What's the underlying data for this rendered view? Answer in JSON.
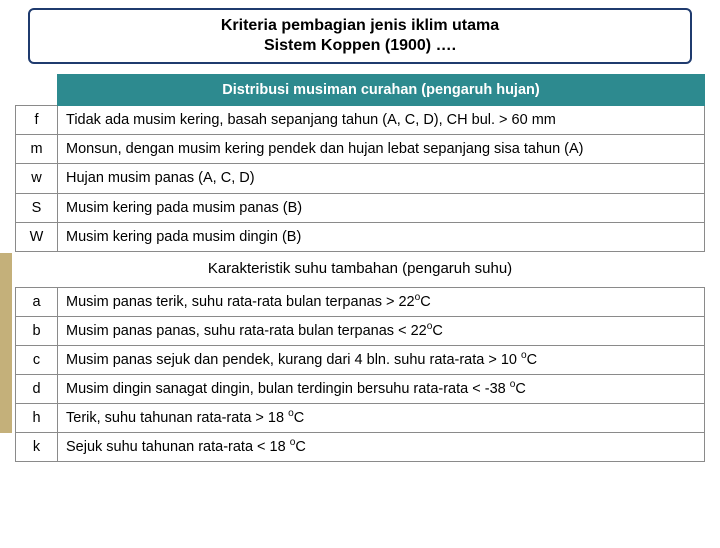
{
  "title": {
    "line1": "Kriteria pembagian jenis iklim utama",
    "line2": "Sistem Koppen (1900) …."
  },
  "section1_header": "Distribusi musiman curahan  (pengaruh hujan)",
  "section1_rows": [
    {
      "code": "f",
      "desc": "Tidak ada musim kering, basah sepanjang tahun (A, C, D), CH bul. > 60 mm"
    },
    {
      "code": "m",
      "desc": "Monsun, dengan musim kering pendek dan hujan lebat sepanjang sisa tahun (A)"
    },
    {
      "code": "w",
      "desc": "Hujan musim panas (A, C, D)"
    },
    {
      "code": "S",
      "desc": "Musim kering pada  musim panas (B)"
    },
    {
      "code": "W",
      "desc": "Musim kering pada musim dingin (B)"
    }
  ],
  "section2_header": "Karakteristik suhu tambahan (pengaruh suhu)",
  "section2_rows": [
    {
      "code": "a",
      "desc": "Musim panas terik, suhu rata-rata bulan terpanas > 22",
      "unit": "o",
      "tail": "C"
    },
    {
      "code": "b",
      "desc": "Musim panas panas, suhu rata-rata bulan terpanas < 22",
      "unit": "o",
      "tail": "C"
    },
    {
      "code": "c",
      "desc": "Musim panas sejuk dan pendek, kurang dari 4 bln. suhu rata-rata > 10 ",
      "unit": "o",
      "tail": "C"
    },
    {
      "code": "d",
      "desc": "Musim dingin sanagat dingin, bulan terdingin bersuhu rata-rata < -38 ",
      "unit": "o",
      "tail": "C"
    },
    {
      "code": "h",
      "desc": "Terik, suhu tahunan rata-rata > 18 ",
      "unit": "o",
      "tail": "C"
    },
    {
      "code": "k",
      "desc": "Sejuk  suhu tahunan rata-rata < 18 ",
      "unit": "o",
      "tail": "C"
    }
  ],
  "colors": {
    "header_bg": "#2d8a8f",
    "border": "#1f3b6e",
    "sidebar": "#c4b07a"
  }
}
